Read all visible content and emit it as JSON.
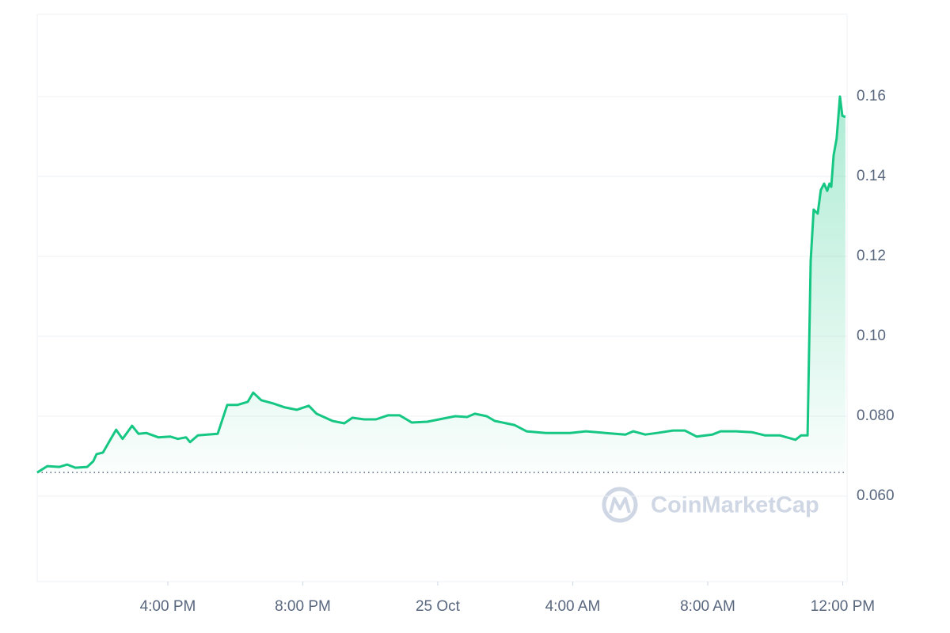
{
  "chart_data": {
    "type": "line",
    "watermark": "CoinMarketCap",
    "x": [
      0.13,
      0.43,
      0.79,
      1.02,
      1.26,
      1.61,
      1.79,
      1.89,
      2.08,
      2.31,
      2.47,
      2.66,
      2.94,
      3.13,
      3.36,
      3.72,
      4.07,
      4.3,
      4.54,
      4.66,
      4.89,
      5.17,
      5.48,
      5.76,
      6.06,
      6.37,
      6.53,
      6.77,
      7.12,
      7.47,
      7.82,
      8.18,
      8.41,
      8.88,
      9.23,
      9.47,
      9.82,
      10.17,
      10.52,
      10.87,
      11.23,
      11.69,
      12.16,
      12.52,
      12.87,
      13.1,
      13.45,
      13.69,
      14.27,
      14.63,
      15.21,
      15.92,
      16.39,
      16.97,
      17.56,
      17.79,
      18.15,
      18.5,
      18.97,
      19.32,
      19.67,
      20.14,
      20.38,
      20.84,
      21.31,
      21.69,
      22.13,
      22.6,
      22.77,
      22.96,
      23.05,
      23.14,
      23.26,
      23.35,
      23.45,
      23.54,
      23.61,
      23.66,
      23.73,
      23.82,
      23.92,
      23.99,
      24.08
    ],
    "series": [
      {
        "color": "#16c784",
        "values": [
          0.0659,
          0.0675,
          0.0673,
          0.0679,
          0.0671,
          0.0673,
          0.0687,
          0.0705,
          0.0709,
          0.0743,
          0.0766,
          0.0743,
          0.0776,
          0.0756,
          0.0758,
          0.0747,
          0.0749,
          0.0743,
          0.0747,
          0.0735,
          0.0752,
          0.0754,
          0.0756,
          0.0828,
          0.0828,
          0.0836,
          0.0859,
          0.084,
          0.0832,
          0.0822,
          0.0816,
          0.0826,
          0.0806,
          0.0788,
          0.0782,
          0.0796,
          0.0792,
          0.0792,
          0.0802,
          0.0802,
          0.0784,
          0.0786,
          0.0794,
          0.08,
          0.0798,
          0.0806,
          0.08,
          0.0788,
          0.0778,
          0.0762,
          0.0758,
          0.0758,
          0.0762,
          0.0758,
          0.0754,
          0.0762,
          0.0754,
          0.0758,
          0.0764,
          0.0764,
          0.0749,
          0.0754,
          0.0762,
          0.0762,
          0.076,
          0.0752,
          0.0752,
          0.0741,
          0.0752,
          0.0752,
          0.1188,
          0.1317,
          0.1307,
          0.1366,
          0.1382,
          0.1364,
          0.1382,
          0.1374,
          0.1453,
          0.1495,
          0.16,
          0.1552,
          0.1549
        ]
      }
    ],
    "baseline": 0.0659,
    "xlim": [
      0.13,
      24.13
    ],
    "xticks": [
      {
        "value": 4,
        "label": "4:00 PM"
      },
      {
        "value": 8,
        "label": "8:00 PM"
      },
      {
        "value": 12,
        "label": "25 Oct"
      },
      {
        "value": 16,
        "label": "4:00 AM"
      },
      {
        "value": 20,
        "label": "8:00 AM"
      },
      {
        "value": 24,
        "label": "12:00 PM"
      }
    ],
    "ylim": [
      0.0386,
      0.1806
    ],
    "yticks": [
      {
        "value": 0.06,
        "label": "0.060"
      },
      {
        "value": 0.08,
        "label": "0.080"
      },
      {
        "value": 0.1,
        "label": "0.10"
      },
      0.12,
      0.14,
      0.16
    ],
    "grid": true
  }
}
